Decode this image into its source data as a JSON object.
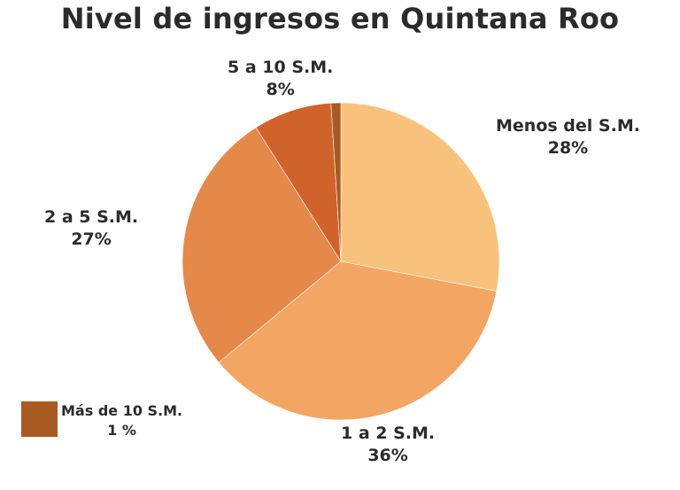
{
  "chart_data": {
    "type": "pie",
    "title": "Nivel de ingresos en Quintana Roo",
    "slices": [
      {
        "label": "Menos del S.M.",
        "value": 28,
        "display": "28%",
        "color": "#f9c27c"
      },
      {
        "label": "1 a 2 S.M.",
        "value": 36,
        "display": "36%",
        "color": "#f3a563"
      },
      {
        "label": "2 a 5 S.M.",
        "value": 27,
        "display": "27%",
        "color": "#e4894a"
      },
      {
        "label": "5 a 10 S.M.",
        "value": 8,
        "display": "8%",
        "color": "#d0622c"
      },
      {
        "label": "Más de 10 S.M.",
        "value": 1,
        "display": "1 %",
        "color": "#a85a22"
      }
    ],
    "legend": {
      "label": "Más de 10 S.M.",
      "value": "1 %",
      "placement": "bottom-left"
    }
  }
}
